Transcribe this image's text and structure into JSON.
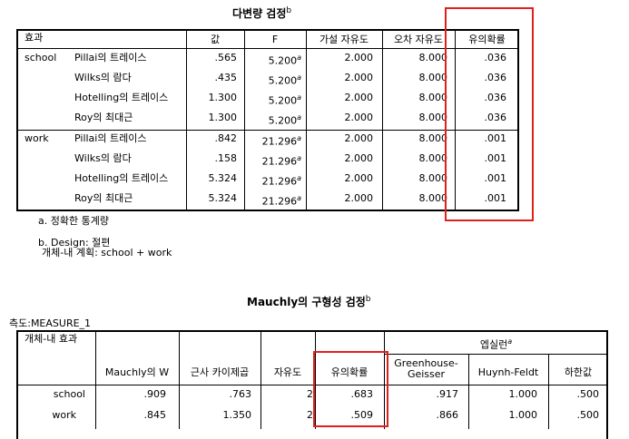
{
  "table1": {
    "title": "다변량 검정",
    "title_sup": "b",
    "headers": [
      "효과",
      "값",
      "F",
      "가설 자유도",
      "오차 자유도",
      "유의확률"
    ],
    "groups": [
      {
        "effect": "school",
        "rows": [
          {
            "test": "Pillai의 트레이스",
            "value": ".565",
            "f": "5.200",
            "f_sup": "a",
            "hyp_df": "2.000",
            "err_df": "8.000",
            "sig": ".036"
          },
          {
            "test": "Wilks의 람다",
            "value": ".435",
            "f": "5.200",
            "f_sup": "a",
            "hyp_df": "2.000",
            "err_df": "8.000",
            "sig": ".036"
          },
          {
            "test": "Hotelling의 트레이스",
            "value": "1.300",
            "f": "5.200",
            "f_sup": "a",
            "hyp_df": "2.000",
            "err_df": "8.000",
            "sig": ".036"
          },
          {
            "test": "Roy의 최대근",
            "value": "1.300",
            "f": "5.200",
            "f_sup": "a",
            "hyp_df": "2.000",
            "err_df": "8.000",
            "sig": ".036"
          }
        ]
      },
      {
        "effect": "work",
        "rows": [
          {
            "test": "Pillai의 트레이스",
            "value": ".842",
            "f": "21.296",
            "f_sup": "a",
            "hyp_df": "2.000",
            "err_df": "8.000",
            "sig": ".001"
          },
          {
            "test": "Wilks의 람다",
            "value": ".158",
            "f": "21.296",
            "f_sup": "a",
            "hyp_df": "2.000",
            "err_df": "8.000",
            "sig": ".001"
          },
          {
            "test": "Hotelling의 트레이스",
            "value": "5.324",
            "f": "21.296",
            "f_sup": "a",
            "hyp_df": "2.000",
            "err_df": "8.000",
            "sig": ".001"
          },
          {
            "test": "Roy의 최대근",
            "value": "5.324",
            "f": "21.296",
            "f_sup": "a",
            "hyp_df": "2.000",
            "err_df": "8.000",
            "sig": ".001"
          }
        ]
      }
    ],
    "footnotes": {
      "a": "a. 정확한 통계량",
      "b1": "b. Design: 절편",
      "b2": "개체-내 계획: school + work"
    }
  },
  "table2": {
    "title": "Mauchly의 구형성 검정",
    "title_sup": "b",
    "measure": "측도:MEASURE_1",
    "headers": {
      "effect": "개체-내 효과",
      "w": "Mauchly의 W",
      "chisq": "근사 카이제곱",
      "df": "자유도",
      "sig": "유의확률",
      "epsilon": "엡실런",
      "epsilon_sup": "a",
      "gg_line1": "Greenhouse-",
      "gg_line2": "Geisser",
      "hf": "Huynh-Feldt",
      "lb": "하한값"
    },
    "rows": [
      {
        "effect": "school",
        "w": ".909",
        "chisq": ".763",
        "df": "2",
        "sig": ".683",
        "gg": ".917",
        "hf": "1.000",
        "lb": ".500"
      },
      {
        "effect": "work",
        "w": ".845",
        "chisq": "1.350",
        "df": "2",
        "sig": ".509",
        "gg": ".866",
        "hf": "1.000",
        "lb": ".500"
      }
    ]
  },
  "highlight_color": "#e0201b"
}
